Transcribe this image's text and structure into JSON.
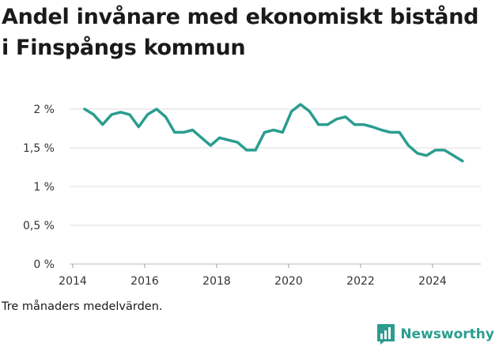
{
  "title": "Andel invånare med ekonomiskt bistånd i Finspångs kommun",
  "note": "Tre månaders medelvärden.",
  "brand": {
    "name": "Newsworthy",
    "icon": "bar-chart-logo-icon",
    "color": "#2a9d8f"
  },
  "chart_data": {
    "type": "line",
    "title": "Andel invånare med ekonomiskt bistånd i Finspångs kommun",
    "xlabel": "",
    "ylabel": "",
    "ylim": [
      0,
      2.2
    ],
    "xlim": [
      2014,
      2025.5
    ],
    "yticks": [
      0,
      0.5,
      1,
      1.5,
      2
    ],
    "ytick_labels": [
      "0 %",
      "0,5 %",
      "1 %",
      "1,5 %",
      "2 %"
    ],
    "xticks": [
      2014,
      2016,
      2018,
      2020,
      2022,
      2024
    ],
    "xtick_labels": [
      "2014",
      "2016",
      "2018",
      "2020",
      "2022",
      "2024"
    ],
    "grid": true,
    "line_color": "#2a9d8f",
    "series": [
      {
        "x": [
          2014.33,
          2014.58,
          2014.83,
          2015.08,
          2015.33,
          2015.58,
          2015.83,
          2016.08,
          2016.33,
          2016.58,
          2016.83,
          2017.08,
          2017.33,
          2017.58,
          2017.83,
          2018.08,
          2018.33,
          2018.58,
          2018.83,
          2019.08,
          2019.33,
          2019.58,
          2019.83,
          2020.08,
          2020.33,
          2020.58,
          2020.83,
          2021.08,
          2021.33,
          2021.58,
          2021.83,
          2022.08,
          2022.33,
          2022.58,
          2022.83,
          2023.08,
          2023.33,
          2023.58,
          2023.83,
          2024.08,
          2024.33,
          2024.58,
          2024.83
        ],
        "values": [
          2.0,
          1.93,
          1.8,
          1.93,
          1.96,
          1.93,
          1.77,
          1.93,
          2.0,
          1.9,
          1.7,
          1.7,
          1.73,
          1.63,
          1.53,
          1.63,
          1.6,
          1.57,
          1.47,
          1.47,
          1.7,
          1.73,
          1.7,
          1.97,
          2.06,
          1.97,
          1.8,
          1.8,
          1.87,
          1.9,
          1.8,
          1.8,
          1.77,
          1.73,
          1.7,
          1.7,
          1.53,
          1.43,
          1.4,
          1.47,
          1.47,
          1.4,
          1.33
        ]
      }
    ]
  }
}
